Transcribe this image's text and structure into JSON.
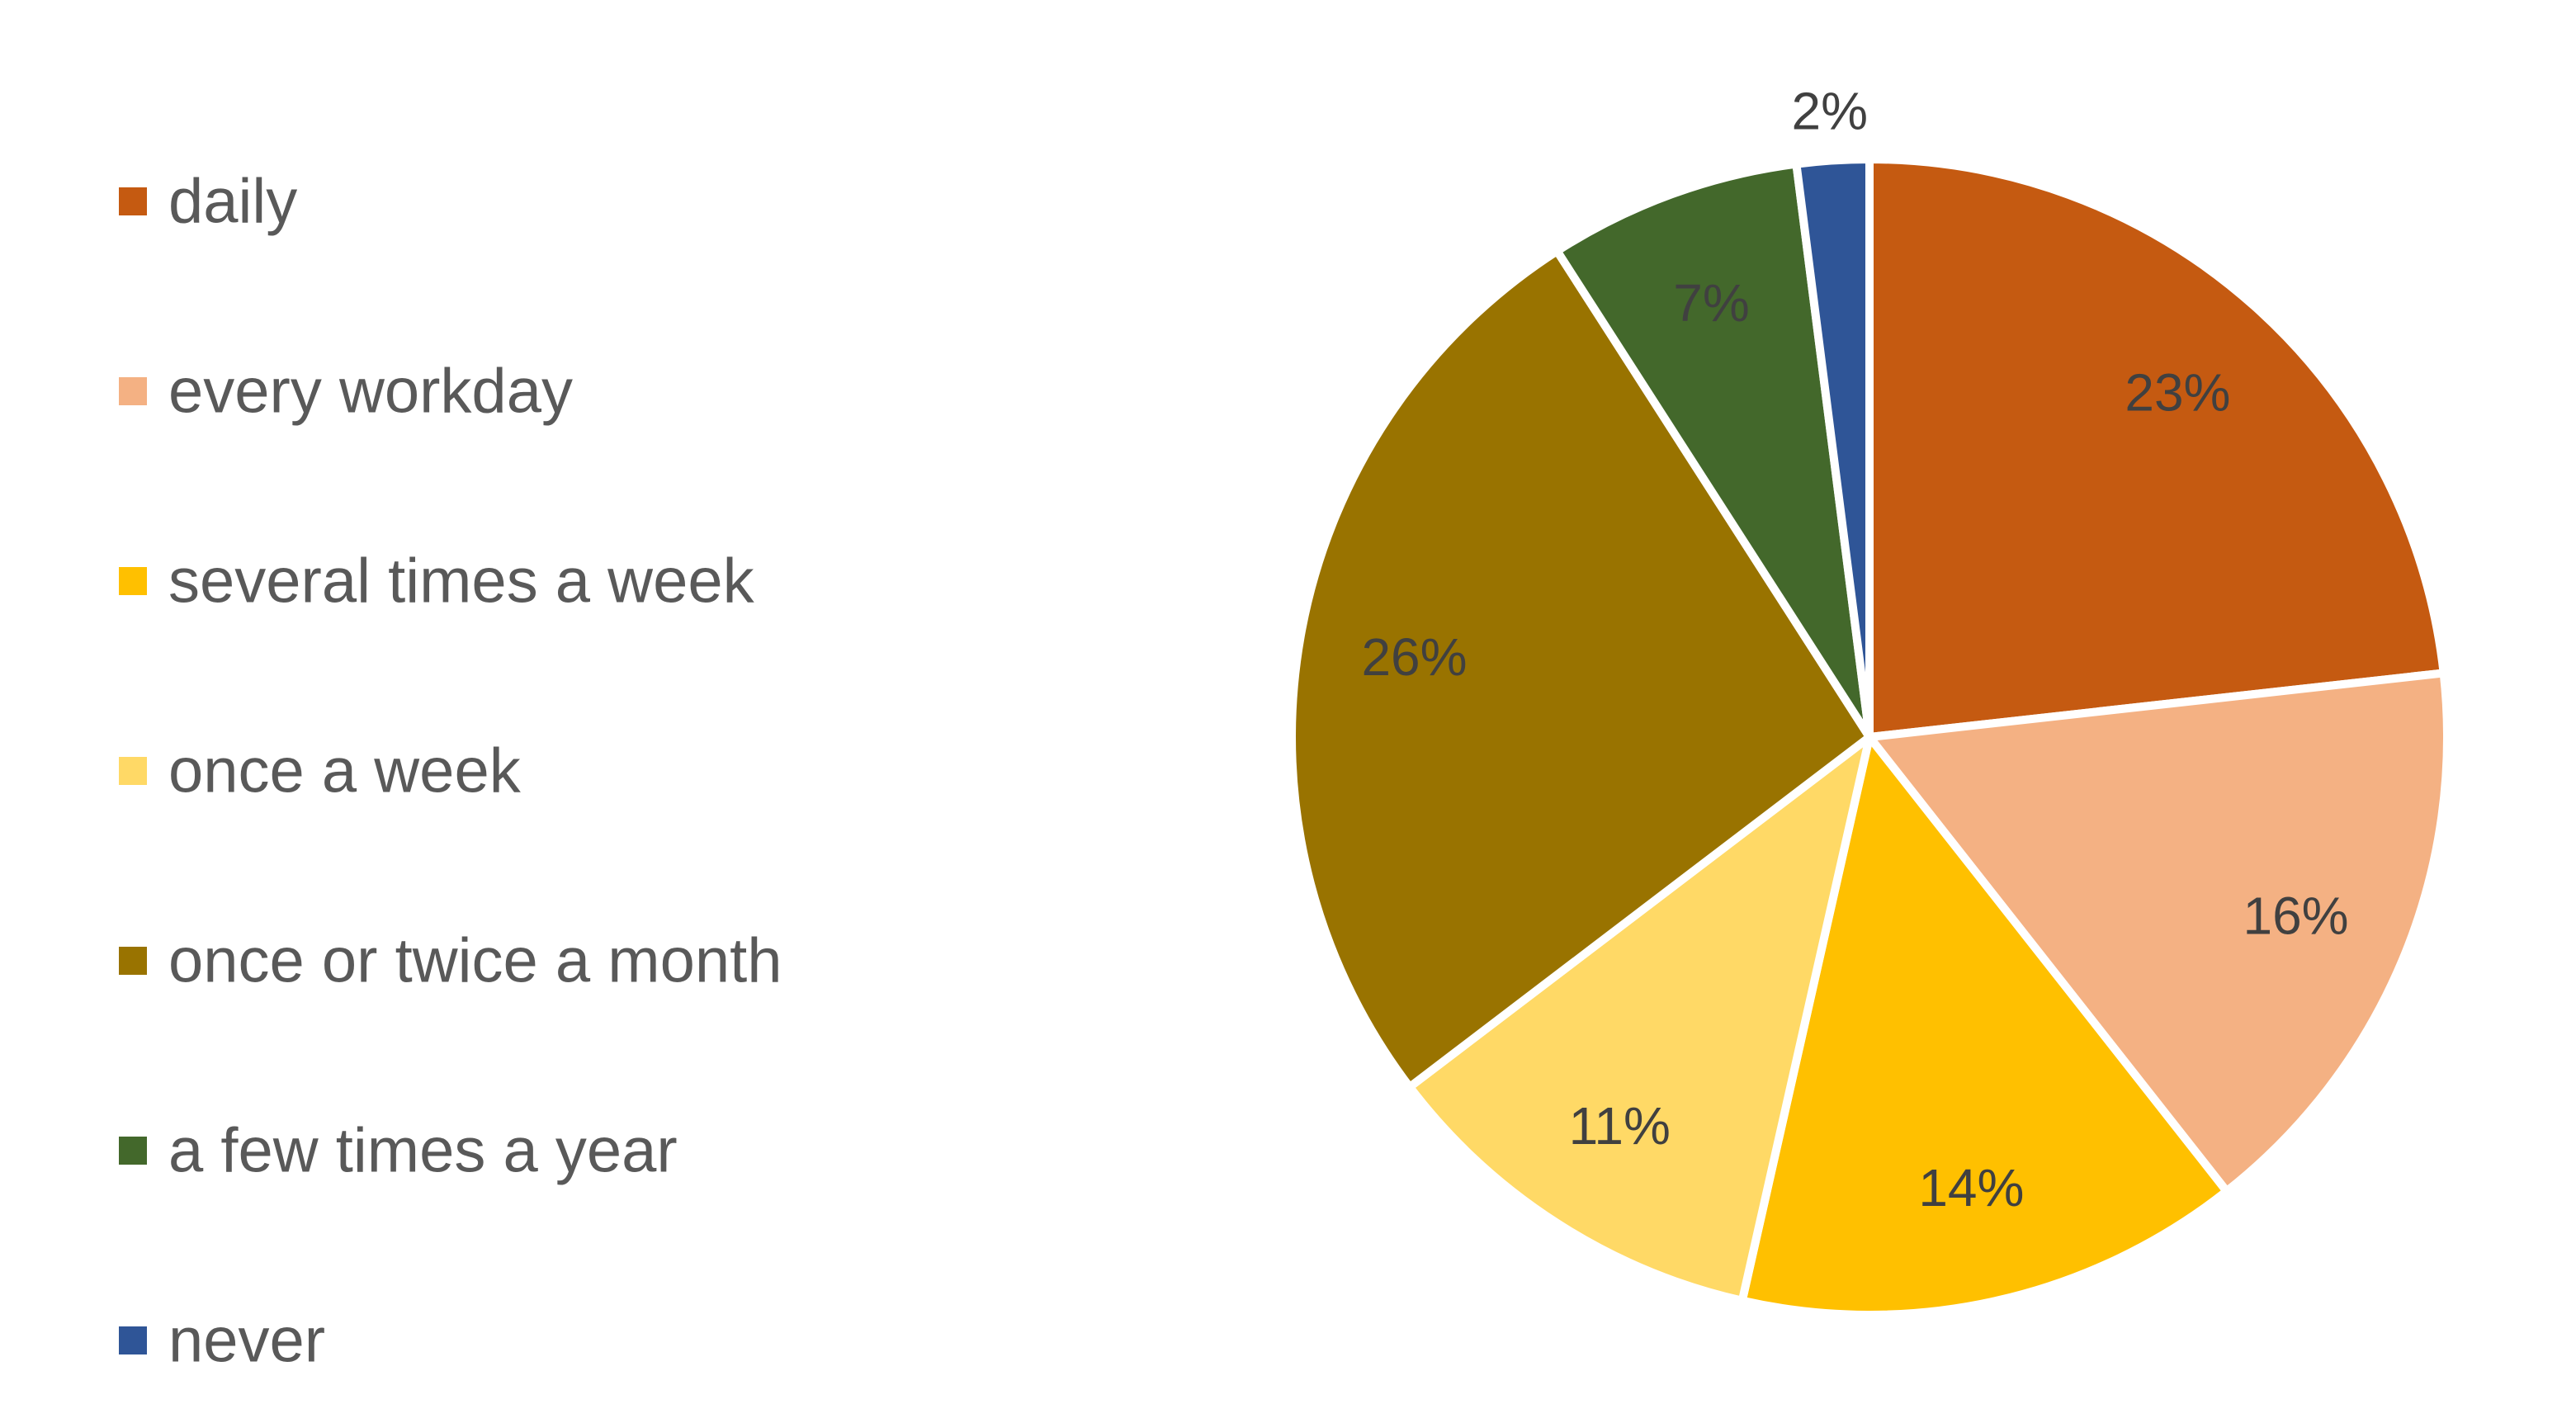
{
  "chart_data": {
    "type": "pie",
    "title": "",
    "legend_position": "left",
    "slices": [
      {
        "label": "daily",
        "value": 23,
        "display": "23%",
        "color": "#C55A11"
      },
      {
        "label": "every workday",
        "value": 16,
        "display": "16%",
        "color": "#F4B183"
      },
      {
        "label": "several times a week",
        "value": 14,
        "display": "14%",
        "color": "#FFC000"
      },
      {
        "label": "once a week",
        "value": 11,
        "display": "11%",
        "color": "#FFD966"
      },
      {
        "label": "once or twice a month",
        "value": 26,
        "display": "26%",
        "color": "#997300"
      },
      {
        "label": "a few times a year",
        "value": 7,
        "display": "7%",
        "color": "#43682B"
      },
      {
        "label": "never",
        "value": 2,
        "display": "2%",
        "color": "#2F5597"
      }
    ]
  }
}
